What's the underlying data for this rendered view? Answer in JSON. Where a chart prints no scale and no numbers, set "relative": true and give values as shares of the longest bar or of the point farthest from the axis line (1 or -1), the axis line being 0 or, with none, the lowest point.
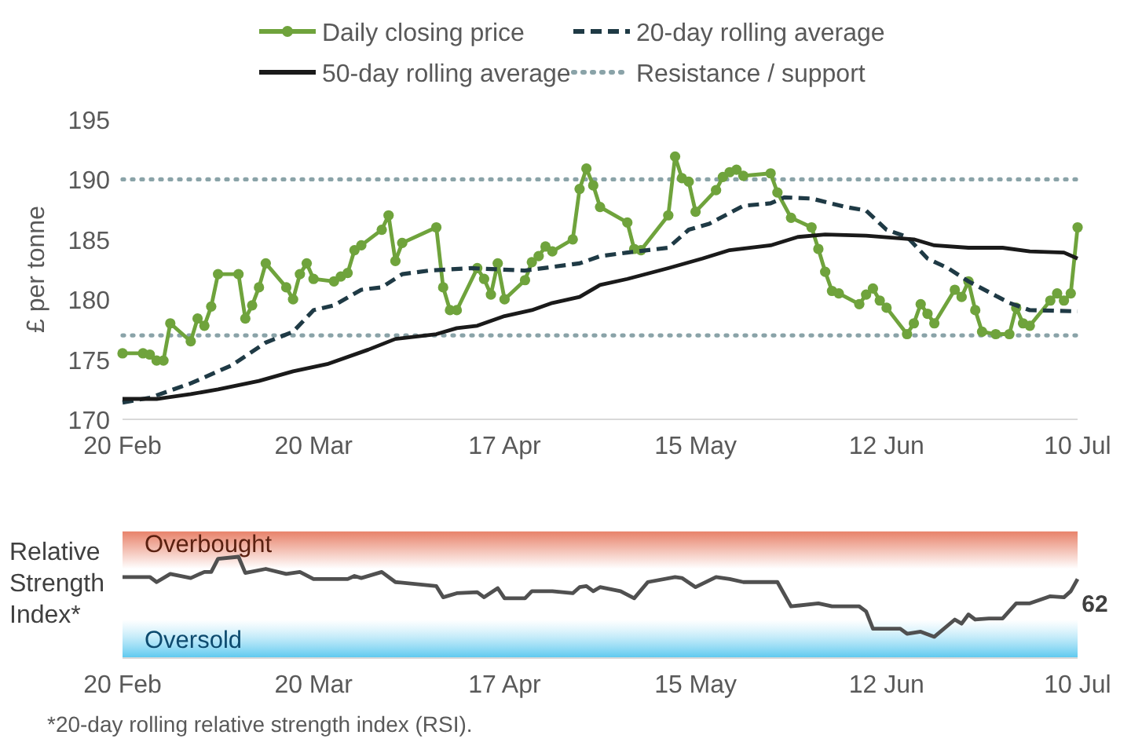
{
  "chart_data": [
    {
      "type": "line",
      "ylabel": "£ per tonne",
      "legend": "top",
      "xlim": [
        "--02-20",
        "--07-10"
      ],
      "ylim": [
        170,
        195
      ],
      "yticks": [
        170,
        175,
        180,
        185,
        190,
        195
      ],
      "xticks": [
        {
          "value": "--02-20",
          "label": "20 Feb"
        },
        {
          "value": "--03-20",
          "label": "20 Mar"
        },
        {
          "value": "--04-17",
          "label": "17 Apr"
        },
        {
          "value": "--05-15",
          "label": "15 May"
        },
        {
          "value": "--06-12",
          "label": "12 Jun"
        },
        {
          "value": "--07-10",
          "label": "10 Jul"
        }
      ],
      "ref_lines": [
        {
          "axis": "y",
          "value": 190,
          "label": "Resistance / support",
          "color": "#8aa3a8",
          "line_style": "dotted"
        },
        {
          "axis": "y",
          "value": 177,
          "label": null,
          "color": "#8aa3a8",
          "line_style": "dotted"
        }
      ],
      "series": [
        {
          "name": "Daily closing price",
          "color": "#6fa33c",
          "marker": "circle",
          "line_style": "solid",
          "x": [
            "--02-20",
            "--02-23",
            "--02-24",
            "--02-25",
            "--02-26",
            "--02-27",
            "--03-02",
            "--03-03",
            "--03-04",
            "--03-05",
            "--03-06",
            "--03-09",
            "--03-10",
            "--03-11",
            "--03-12",
            "--03-13",
            "--03-16",
            "--03-17",
            "--03-18",
            "--03-19",
            "--03-20",
            "--03-23",
            "--03-24",
            "--03-25",
            "--03-26",
            "--03-27",
            "--03-30",
            "--03-31",
            "--04-01",
            "--04-02",
            "--04-07",
            "--04-08",
            "--04-09",
            "--04-10",
            "--04-13",
            "--04-14",
            "--04-15",
            "--04-16",
            "--04-17",
            "--04-20",
            "--04-21",
            "--04-22",
            "--04-23",
            "--04-24",
            "--04-27",
            "--04-28",
            "--04-29",
            "--04-30",
            "--05-01",
            "--05-05",
            "--05-06",
            "--05-07",
            "--05-11",
            "--05-12",
            "--05-13",
            "--05-14",
            "--05-15",
            "--05-18",
            "--05-19",
            "--05-20",
            "--05-21",
            "--05-22",
            "--05-26",
            "--05-27",
            "--05-29",
            "--06-01",
            "--06-02",
            "--06-03",
            "--06-04",
            "--06-05",
            "--06-08",
            "--06-09",
            "--06-10",
            "--06-11",
            "--06-12",
            "--06-15",
            "--06-16",
            "--06-17",
            "--06-18",
            "--06-19",
            "--06-22",
            "--06-23",
            "--06-24",
            "--06-25",
            "--06-26",
            "--06-28",
            "--06-30",
            "--07-01",
            "--07-02",
            "--07-03",
            "--07-06",
            "--07-07",
            "--07-08",
            "--07-09",
            "--07-10"
          ],
          "values": [
            175.5,
            175.5,
            175.4,
            174.9,
            174.9,
            178.0,
            176.5,
            178.4,
            177.8,
            179.4,
            182.1,
            182.1,
            178.4,
            179.5,
            181.0,
            183.0,
            181.0,
            180.0,
            182.1,
            183.0,
            181.7,
            181.5,
            181.9,
            182.2,
            184.1,
            184.5,
            185.8,
            187.0,
            183.2,
            184.7,
            186.0,
            181.0,
            179.1,
            179.1,
            182.6,
            181.7,
            180.4,
            183.0,
            180.0,
            181.6,
            183.1,
            183.6,
            184.4,
            184.0,
            185.0,
            189.2,
            190.9,
            189.5,
            187.7,
            186.4,
            184.2,
            184.1,
            187.0,
            191.9,
            190.1,
            189.8,
            187.3,
            189.1,
            190.2,
            190.6,
            190.8,
            190.3,
            190.5,
            188.9,
            186.8,
            186.0,
            184.2,
            182.3,
            180.7,
            180.5,
            179.6,
            180.4,
            180.9,
            179.9,
            179.3,
            177.1,
            178.0,
            179.6,
            178.8,
            178.0,
            180.8,
            180.2,
            181.5,
            179.1,
            177.3,
            177.1,
            177.1,
            179.3,
            178.0,
            177.8,
            179.9,
            180.5,
            179.9,
            180.5,
            186.0
          ]
        },
        {
          "name": "20-day rolling average",
          "color": "#1f3a45",
          "marker": "none",
          "line_style": "dashed",
          "x": [
            "--02-20",
            "--02-24",
            "--03-02",
            "--03-08",
            "--03-13",
            "--03-17",
            "--03-20",
            "--03-23",
            "--03-27",
            "--03-30",
            "--04-02",
            "--04-06",
            "--04-12",
            "--04-20",
            "--04-28",
            "--05-01",
            "--05-05",
            "--05-11",
            "--05-14",
            "--05-17",
            "--05-22",
            "--05-26",
            "--05-28",
            "--06-01",
            "--06-06",
            "--06-09",
            "--06-12",
            "--06-15",
            "--06-18",
            "--06-21",
            "--06-24",
            "--06-27",
            "--06-30",
            "--07-03",
            "--07-10"
          ],
          "values": [
            171.4,
            171.8,
            173.0,
            174.5,
            176.4,
            177.3,
            179.1,
            179.5,
            180.8,
            181.0,
            182.1,
            182.4,
            182.6,
            182.4,
            183.0,
            183.6,
            183.9,
            184.3,
            185.8,
            186.3,
            187.8,
            188.0,
            188.5,
            188.4,
            187.7,
            187.4,
            185.8,
            185.2,
            183.4,
            182.6,
            181.5,
            180.6,
            179.7,
            179.1,
            179.0
          ]
        },
        {
          "name": "50-day rolling average",
          "color": "#1a1a1a",
          "marker": "none",
          "line_style": "solid",
          "x": [
            "--02-20",
            "--02-25",
            "--03-02",
            "--03-06",
            "--03-12",
            "--03-17",
            "--03-22",
            "--03-28",
            "--04-01",
            "--04-07",
            "--04-10",
            "--04-13",
            "--04-17",
            "--04-21",
            "--04-24",
            "--04-28",
            "--05-01",
            "--05-05",
            "--05-11",
            "--05-16",
            "--05-20",
            "--05-26",
            "--05-30",
            "--06-03",
            "--06-09",
            "--06-16",
            "--06-19",
            "--06-24",
            "--06-29",
            "--07-03",
            "--07-08",
            "--07-10"
          ],
          "values": [
            171.7,
            171.7,
            172.1,
            172.5,
            173.2,
            174.0,
            174.6,
            175.8,
            176.7,
            177.1,
            177.6,
            177.8,
            178.6,
            179.1,
            179.7,
            180.2,
            181.2,
            181.7,
            182.6,
            183.4,
            184.1,
            184.5,
            185.2,
            185.4,
            185.3,
            185.0,
            184.5,
            184.3,
            184.3,
            184.0,
            183.9,
            183.4
          ]
        }
      ]
    },
    {
      "type": "line",
      "ylabel": "Relative Strength Index*",
      "tick_labels": "x",
      "relative": true,
      "xlim": [
        "--02-20",
        "--07-10"
      ],
      "xticks": [
        {
          "value": "--02-20",
          "label": "20 Feb"
        },
        {
          "value": "--03-20",
          "label": "20 Mar"
        },
        {
          "value": "--04-17",
          "label": "17 Apr"
        },
        {
          "value": "--05-15",
          "label": "15 May"
        },
        {
          "value": "--06-12",
          "label": "12 Jun"
        },
        {
          "value": "--07-10",
          "label": "10 Jul"
        }
      ],
      "bands": [
        {
          "axis": "y",
          "from": 0.88,
          "to": 1.25,
          "label": "Overbought",
          "color": "#e8826a"
        },
        {
          "axis": "y",
          "from": 0,
          "to": 0.38,
          "label": "Oversold",
          "color": "#5bc8ef"
        }
      ],
      "annotations": [
        {
          "text": "62",
          "x": "--07-10",
          "y": 0.78
        },
        "*20-day rolling relative strength index (RSI)."
      ],
      "series": [
        {
          "color": "#505050",
          "x": [
            "--02-20",
            "--02-24",
            "--02-25",
            "--02-27",
            "--03-02",
            "--03-04",
            "--03-05",
            "--03-06",
            "--03-09",
            "--03-10",
            "--03-13",
            "--03-16",
            "--03-18",
            "--03-20",
            "--03-25",
            "--03-26",
            "--03-27",
            "--03-30",
            "--04-01",
            "--04-07",
            "--04-08",
            "--04-10",
            "--04-13",
            "--04-14",
            "--04-16",
            "--04-17",
            "--04-20",
            "--04-21",
            "--04-24",
            "--04-27",
            "--04-28",
            "--04-29",
            "--04-30",
            "--05-01",
            "--05-04",
            "--05-06",
            "--05-08",
            "--05-12",
            "--05-13",
            "--05-15",
            "--05-18",
            "--05-20",
            "--05-22",
            "--05-27",
            "--05-29",
            "--06-02",
            "--06-04",
            "--06-08",
            "--06-09",
            "--06-10",
            "--06-14",
            "--06-15",
            "--06-17",
            "--06-19",
            "--06-22",
            "--06-23",
            "--06-24",
            "--06-25",
            "--06-27",
            "--06-29",
            "--07-01",
            "--07-03",
            "--07-06",
            "--07-08",
            "--07-09",
            "--07-10"
          ],
          "values": [
            0.8,
            0.8,
            0.75,
            0.83,
            0.79,
            0.85,
            0.85,
            0.98,
            1,
            0.84,
            0.88,
            0.83,
            0.85,
            0.78,
            0.78,
            0.81,
            0.79,
            0.85,
            0.75,
            0.71,
            0.6,
            0.64,
            0.65,
            0.6,
            0.69,
            0.59,
            0.59,
            0.66,
            0.66,
            0.64,
            0.7,
            0.71,
            0.66,
            0.7,
            0.66,
            0.59,
            0.75,
            0.8,
            0.79,
            0.7,
            0.8,
            0.78,
            0.75,
            0.75,
            0.51,
            0.54,
            0.51,
            0.51,
            0.46,
            0.29,
            0.29,
            0.24,
            0.26,
            0.21,
            0.38,
            0.34,
            0.43,
            0.38,
            0.39,
            0.39,
            0.54,
            0.54,
            0.61,
            0.6,
            0.66,
            0.78
          ]
        }
      ]
    }
  ]
}
